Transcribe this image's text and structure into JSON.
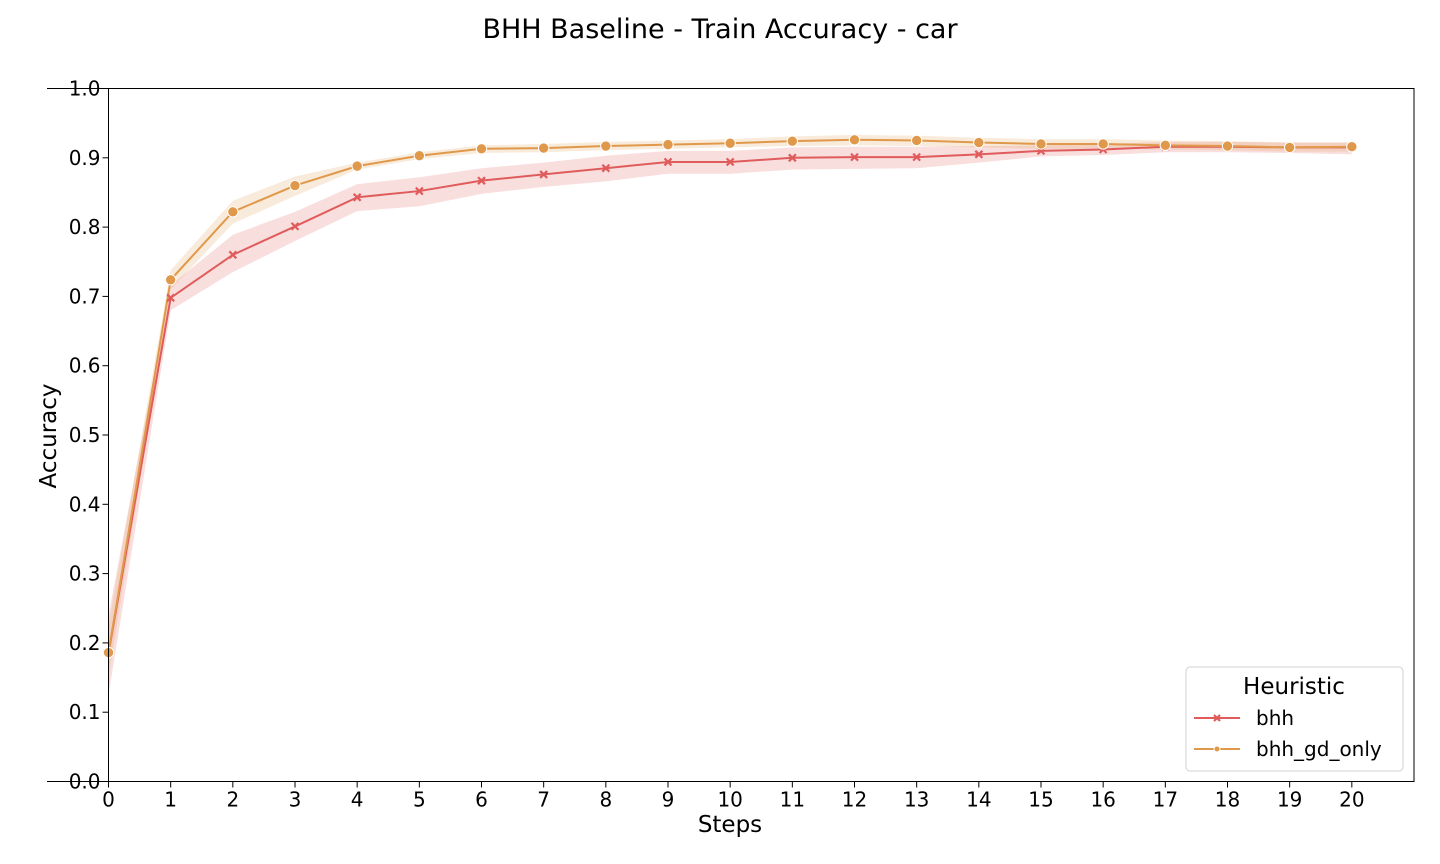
{
  "chart_data": {
    "type": "line",
    "title": "BHH Baseline - Train Accuracy - car",
    "xlabel": "Steps",
    "ylabel": "Accuracy",
    "xlim": [
      0,
      21
    ],
    "ylim": [
      0.0,
      1.0
    ],
    "x": [
      0,
      1,
      2,
      3,
      4,
      5,
      6,
      7,
      8,
      9,
      10,
      11,
      12,
      13,
      14,
      15,
      16,
      17,
      18,
      19,
      20
    ],
    "x_ticks": [
      "0",
      "1",
      "2",
      "3",
      "4",
      "5",
      "6",
      "7",
      "8",
      "9",
      "10",
      "11",
      "12",
      "13",
      "14",
      "15",
      "16",
      "17",
      "18",
      "19",
      "20"
    ],
    "y_ticks": [
      "0.0",
      "0.1",
      "0.2",
      "0.3",
      "0.4",
      "0.5",
      "0.6",
      "0.7",
      "0.8",
      "0.9",
      "1.0"
    ],
    "legend": {
      "title": "Heuristic",
      "placement": "bottom-right"
    },
    "grid": false,
    "series": [
      {
        "name": "bhh",
        "color": "#e05c5c",
        "marker": "x",
        "values": [
          0.185,
          0.698,
          0.76,
          0.801,
          0.843,
          0.852,
          0.867,
          0.876,
          0.885,
          0.894,
          0.894,
          0.9,
          0.901,
          0.901,
          0.905,
          0.91,
          0.912,
          0.916,
          0.916,
          0.915,
          0.915
        ],
        "lower": [
          0.125,
          0.68,
          0.735,
          0.78,
          0.823,
          0.83,
          0.848,
          0.858,
          0.866,
          0.877,
          0.877,
          0.883,
          0.884,
          0.885,
          0.893,
          0.902,
          0.904,
          0.908,
          0.908,
          0.907,
          0.905
        ],
        "upper": [
          0.24,
          0.716,
          0.789,
          0.822,
          0.862,
          0.872,
          0.885,
          0.893,
          0.903,
          0.91,
          0.91,
          0.915,
          0.916,
          0.916,
          0.917,
          0.918,
          0.92,
          0.923,
          0.923,
          0.922,
          0.922
        ]
      },
      {
        "name": "bhh_gd_only",
        "color": "#e0994a",
        "marker": "o",
        "values": [
          0.186,
          0.724,
          0.822,
          0.86,
          0.888,
          0.903,
          0.913,
          0.914,
          0.917,
          0.919,
          0.921,
          0.924,
          0.926,
          0.925,
          0.922,
          0.92,
          0.92,
          0.918,
          0.917,
          0.915,
          0.916
        ],
        "lower": [
          0.15,
          0.71,
          0.805,
          0.845,
          0.883,
          0.898,
          0.907,
          0.908,
          0.911,
          0.913,
          0.915,
          0.917,
          0.918,
          0.917,
          0.915,
          0.913,
          0.913,
          0.912,
          0.911,
          0.909,
          0.909
        ],
        "upper": [
          0.225,
          0.738,
          0.838,
          0.873,
          0.893,
          0.908,
          0.918,
          0.92,
          0.923,
          0.925,
          0.927,
          0.931,
          0.933,
          0.932,
          0.929,
          0.927,
          0.927,
          0.925,
          0.924,
          0.922,
          0.922
        ]
      }
    ]
  }
}
